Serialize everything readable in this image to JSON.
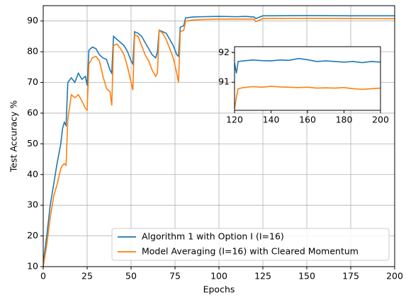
{
  "chart_data": [
    {
      "type": "line",
      "xlabel": "Epochs",
      "ylabel": "Test Accuracy %",
      "xlim": [
        0,
        200
      ],
      "ylim": [
        10,
        95
      ],
      "xticks": [
        0,
        25,
        50,
        75,
        100,
        125,
        150,
        175,
        200
      ],
      "yticks": [
        10,
        20,
        30,
        40,
        50,
        60,
        70,
        80,
        90
      ],
      "grid": true,
      "legend": "lower right",
      "x": [
        0,
        2,
        4,
        6,
        8,
        10,
        11,
        12,
        13,
        14,
        16,
        18,
        20,
        22,
        24,
        25,
        26,
        28,
        30,
        32,
        34,
        36,
        38,
        39,
        40,
        42,
        44,
        46,
        48,
        50,
        51,
        52,
        54,
        56,
        58,
        60,
        62,
        64,
        65,
        66,
        68,
        70,
        72,
        74,
        76,
        77,
        78,
        80,
        81,
        85,
        90,
        100,
        110,
        115,
        120,
        121,
        125,
        150,
        175,
        200
      ],
      "series": [
        {
          "name": "Algorithm 1 with Option I (I=16)",
          "color": "#1f77b4",
          "values": [
            11,
            20,
            30,
            37,
            44,
            50,
            55,
            57,
            56,
            70,
            71.5,
            70,
            73,
            71,
            72,
            69,
            80.5,
            81.5,
            81,
            79,
            78,
            77.5,
            74,
            73,
            85,
            84,
            83,
            82,
            80,
            77,
            76,
            86.5,
            86,
            85,
            83,
            81,
            79,
            78,
            80,
            87,
            86.5,
            86,
            84,
            82,
            79,
            78.5,
            88,
            88.5,
            91,
            91.3,
            91.4,
            91.5,
            91.4,
            91.5,
            91.3,
            90.8,
            91.7,
            91.75,
            91.7,
            91.7
          ]
        },
        {
          "name": "Model Averaging (I=16) with Cleared Momentum",
          "color": "#ff7f0e",
          "values": [
            10,
            17,
            26,
            33,
            37,
            42,
            43,
            43.5,
            43,
            58,
            66,
            65,
            66,
            64,
            61.5,
            61,
            76,
            78,
            78.5,
            77,
            72,
            68,
            67,
            62.5,
            82,
            82.5,
            81,
            79,
            75,
            70,
            67.5,
            85.5,
            85,
            82,
            79,
            77,
            74,
            72,
            73,
            87,
            86,
            84,
            81,
            78,
            73,
            70,
            86.5,
            87,
            90,
            90.3,
            90.5,
            90.6,
            90.6,
            90.6,
            90.6,
            89.8,
            90.8,
            90.85,
            90.8,
            90.75
          ]
        }
      ]
    },
    {
      "type": "line",
      "xlim": [
        120,
        200
      ],
      "ylim": [
        90.05,
        92.2
      ],
      "xticks": [
        120,
        140,
        160,
        180,
        200
      ],
      "yticks": [
        91,
        92
      ],
      "grid": false,
      "x": [
        120,
        121,
        122,
        125,
        130,
        135,
        140,
        145,
        150,
        155,
        160,
        165,
        170,
        175,
        180,
        185,
        190,
        195,
        200
      ],
      "series": [
        {
          "color": "#1f77b4",
          "values": [
            91.65,
            91.3,
            91.7,
            91.72,
            91.75,
            91.73,
            91.72,
            91.75,
            91.74,
            91.8,
            91.76,
            91.7,
            91.72,
            91.7,
            91.68,
            91.7,
            91.66,
            91.7,
            91.68
          ]
        },
        {
          "color": "#ff7f0e",
          "values": [
            90.1,
            90.5,
            90.78,
            90.82,
            90.85,
            90.83,
            90.86,
            90.84,
            90.83,
            90.82,
            90.83,
            90.8,
            90.81,
            90.8,
            90.82,
            90.78,
            90.76,
            90.78,
            90.8
          ]
        }
      ]
    }
  ]
}
